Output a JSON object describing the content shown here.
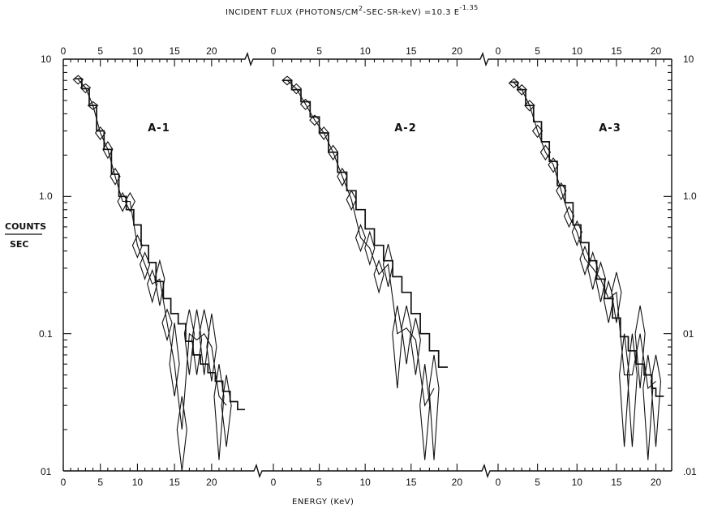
{
  "figure": {
    "title_prefix": "INCIDENT FLUX (PHOTONS/CM",
    "title_sup1": "2",
    "title_mid": "-SEC-SR-keV) =10.3 E",
    "title_sup2": "-1.35",
    "ylabel_top": "COUNTS",
    "ylabel_bottom": "SEC",
    "xlabel": "ENERGY (KeV)",
    "left_y_ticks": [
      "10",
      "1.0",
      "0.1",
      "01"
    ],
    "right_y_ticks": [
      "10",
      "1.0",
      "01",
      ".01"
    ]
  },
  "chart_data": [
    {
      "type": "line",
      "panel_label": "A-1",
      "xlabel": "ENERGY (KeV)",
      "ylabel": "COUNTS/SEC",
      "xlim": [
        0,
        24.5
      ],
      "ylim": [
        0.01,
        10
      ],
      "yscale": "log",
      "x_tick_labels": [
        "0",
        "5",
        "10",
        "15",
        "20"
      ],
      "x_tick_values": [
        0,
        5,
        10,
        15,
        20
      ],
      "grid": false,
      "series": [
        {
          "kind": "step",
          "x": [
            1.5,
            2.5,
            3.5,
            4.5,
            5.5,
            6.5,
            7.5,
            8.5,
            9.5,
            10.5,
            11.5,
            12.5,
            13.5,
            14.5,
            15.5,
            16.5,
            17.5,
            18.5,
            19.5,
            20.5,
            21.5,
            22.5,
            23.5
          ],
          "y": [
            7.2,
            6.1,
            4.6,
            3.0,
            2.2,
            1.45,
            1.0,
            0.8,
            0.62,
            0.44,
            0.33,
            0.24,
            0.18,
            0.14,
            0.118,
            0.088,
            0.07,
            0.06,
            0.052,
            0.045,
            0.038,
            0.032,
            0.028
          ]
        },
        {
          "kind": "diamond",
          "x": [
            2,
            3,
            4,
            5,
            6,
            7,
            8,
            9,
            10,
            11,
            12,
            13,
            14,
            15,
            16,
            17,
            18,
            19,
            20,
            21,
            22
          ],
          "y": [
            7.1,
            6.2,
            4.6,
            2.9,
            2.2,
            1.4,
            0.92,
            0.92,
            0.44,
            0.32,
            0.23,
            0.25,
            0.12,
            0.06,
            0.02,
            0.1,
            0.09,
            0.1,
            0.08,
            0.035,
            0.03
          ],
          "y_low": [
            6.6,
            5.7,
            4.3,
            2.6,
            1.9,
            1.22,
            0.78,
            0.78,
            0.36,
            0.25,
            0.17,
            0.16,
            0.09,
            0.035,
            0.01,
            0.05,
            0.05,
            0.05,
            0.045,
            0.012,
            0.015
          ],
          "y_high": [
            7.6,
            6.6,
            4.9,
            3.2,
            2.5,
            1.6,
            1.06,
            1.06,
            0.52,
            0.39,
            0.29,
            0.34,
            0.15,
            0.12,
            0.035,
            0.15,
            0.15,
            0.15,
            0.14,
            0.06,
            0.05
          ]
        }
      ]
    },
    {
      "type": "line",
      "panel_label": "A-2",
      "xlabel": "ENERGY (KeV)",
      "ylabel": "COUNTS/SEC",
      "xlim": [
        0,
        20.5
      ],
      "ylim": [
        0.01,
        10
      ],
      "yscale": "log",
      "x_tick_labels": [
        "0",
        "5",
        "10",
        "15",
        "20"
      ],
      "x_tick_values": [
        0,
        5,
        10,
        15,
        20
      ],
      "grid": false,
      "series": [
        {
          "kind": "step",
          "x": [
            1.0,
            2.0,
            3.0,
            4.0,
            5.0,
            6.0,
            7.0,
            8.0,
            9.0,
            10.0,
            11.0,
            12.0,
            13.0,
            14.0,
            15.0,
            16.0,
            17.0,
            18.0
          ],
          "y": [
            7.0,
            6.0,
            4.9,
            3.8,
            2.9,
            2.1,
            1.5,
            1.1,
            0.8,
            0.58,
            0.44,
            0.34,
            0.26,
            0.2,
            0.14,
            0.1,
            0.075,
            0.057
          ]
        },
        {
          "kind": "diamond",
          "x": [
            1.5,
            2.5,
            3.5,
            4.5,
            5.5,
            6.5,
            7.5,
            8.5,
            9.5,
            10.5,
            11.5,
            12.5,
            13.5,
            14.5,
            15.5,
            16.5,
            17.5
          ],
          "y": [
            7.0,
            6.1,
            4.7,
            3.6,
            2.9,
            2.1,
            1.4,
            0.95,
            0.5,
            0.42,
            0.27,
            0.32,
            0.1,
            0.11,
            0.09,
            0.03,
            0.04
          ],
          "y_low": [
            6.5,
            5.6,
            4.3,
            3.3,
            2.6,
            1.85,
            1.2,
            0.8,
            0.4,
            0.32,
            0.2,
            0.22,
            0.04,
            0.06,
            0.05,
            0.012,
            0.012
          ],
          "y_high": [
            7.5,
            6.6,
            5.1,
            3.9,
            3.2,
            2.35,
            1.6,
            1.1,
            0.62,
            0.55,
            0.34,
            0.45,
            0.16,
            0.16,
            0.13,
            0.06,
            0.07
          ]
        }
      ]
    },
    {
      "type": "line",
      "panel_label": "A-3",
      "xlabel": "ENERGY (KeV)",
      "ylabel": "COUNTS/SEC",
      "xlim": [
        0,
        22
      ],
      "ylim": [
        0.01,
        10
      ],
      "yscale": "log",
      "x_tick_labels": [
        "0",
        "5",
        "10",
        "15",
        "20"
      ],
      "x_tick_values": [
        0,
        5,
        10,
        15,
        20
      ],
      "grid": false,
      "series": [
        {
          "kind": "step",
          "x": [
            1.5,
            2.5,
            3.5,
            4.5,
            5.5,
            6.5,
            7.5,
            8.5,
            9.5,
            10.5,
            11.5,
            12.5,
            13.5,
            14.5,
            15.5,
            16.5,
            17.5,
            18.5,
            19.5,
            20.0
          ],
          "y": [
            6.8,
            6.0,
            4.6,
            3.5,
            2.5,
            1.8,
            1.2,
            0.9,
            0.62,
            0.46,
            0.34,
            0.25,
            0.18,
            0.13,
            0.095,
            0.075,
            0.06,
            0.05,
            0.04,
            0.035
          ]
        },
        {
          "kind": "diamond",
          "x": [
            2,
            3,
            4,
            5,
            6,
            7,
            8,
            9,
            10,
            11,
            12,
            13,
            14,
            15,
            16,
            17,
            18,
            19,
            20
          ],
          "y": [
            6.7,
            6.0,
            4.6,
            3.0,
            2.1,
            1.7,
            1.1,
            0.72,
            0.55,
            0.35,
            0.3,
            0.25,
            0.18,
            0.2,
            0.05,
            0.05,
            0.1,
            0.04,
            0.045
          ],
          "y_low": [
            6.2,
            5.5,
            4.2,
            2.7,
            1.85,
            1.5,
            0.95,
            0.6,
            0.44,
            0.27,
            0.21,
            0.17,
            0.12,
            0.12,
            0.015,
            0.015,
            0.04,
            0.012,
            0.015
          ],
          "y_high": [
            7.2,
            6.5,
            5.0,
            3.3,
            2.35,
            1.9,
            1.25,
            0.84,
            0.66,
            0.43,
            0.39,
            0.33,
            0.24,
            0.28,
            0.1,
            0.1,
            0.16,
            0.07,
            0.07
          ]
        }
      ]
    }
  ]
}
